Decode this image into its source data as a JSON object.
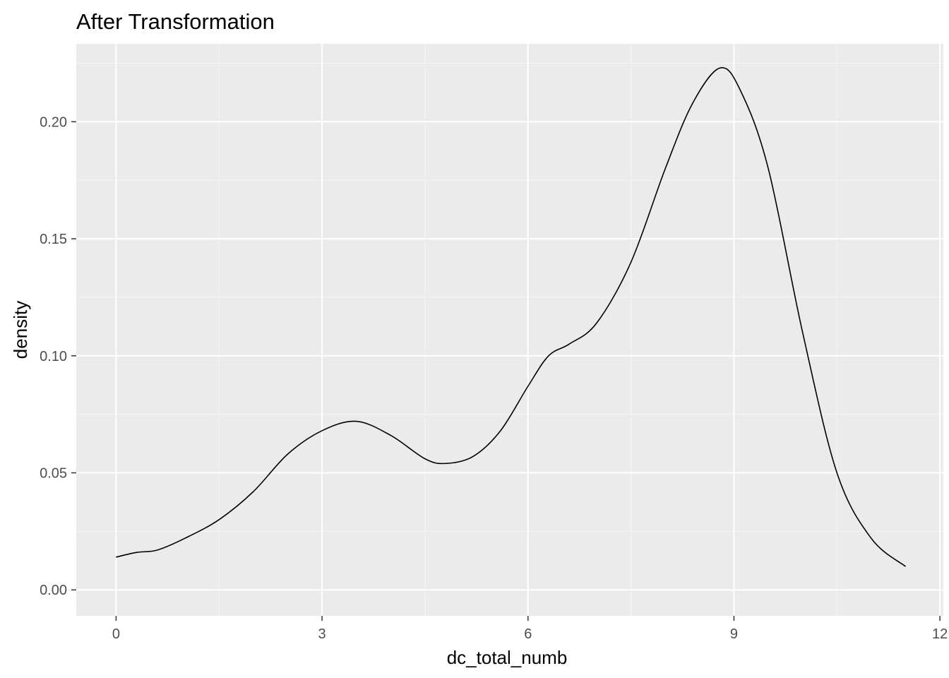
{
  "chart_data": {
    "type": "line",
    "title": "After Transformation",
    "xlabel": "dc_total_numb",
    "ylabel": "density",
    "xlim": [
      -0.58,
      12.05
    ],
    "ylim": [
      -0.0111,
      0.2333
    ],
    "x_ticks": [
      0,
      3,
      6,
      9,
      12
    ],
    "x_tick_labels": [
      "0",
      "3",
      "6",
      "9",
      "12"
    ],
    "x_minor_ticks": [
      1.5,
      4.5,
      7.5,
      10.5
    ],
    "y_ticks": [
      0.0,
      0.05,
      0.1,
      0.15,
      0.2
    ],
    "y_tick_labels": [
      "0.00",
      "0.05",
      "0.10",
      "0.15",
      "0.20"
    ],
    "y_minor_ticks": [
      0.025,
      0.075,
      0.125,
      0.175,
      0.225
    ],
    "grid": true,
    "legend": "none",
    "series": [
      {
        "x": [
          0.0,
          0.3,
          0.6,
          1.0,
          1.5,
          2.0,
          2.5,
          3.0,
          3.5,
          4.0,
          4.5,
          4.8,
          5.2,
          5.6,
          6.0,
          6.3,
          6.6,
          7.0,
          7.5,
          8.0,
          8.4,
          8.8,
          9.1,
          9.5,
          10.0,
          10.5,
          11.0,
          11.5
        ],
        "y": [
          0.014,
          0.016,
          0.017,
          0.022,
          0.03,
          0.042,
          0.058,
          0.068,
          0.072,
          0.066,
          0.056,
          0.054,
          0.057,
          0.068,
          0.087,
          0.1,
          0.105,
          0.114,
          0.14,
          0.18,
          0.208,
          0.223,
          0.213,
          0.18,
          0.11,
          0.05,
          0.022,
          0.01
        ]
      }
    ]
  },
  "colors": {
    "panel_background": "#EBEBEB",
    "grid_major": "#FFFFFF",
    "grid_minor": "#F5F5F5",
    "line": "#000000",
    "tick_text": "#4D4D4D",
    "tick_mark": "#333333"
  }
}
